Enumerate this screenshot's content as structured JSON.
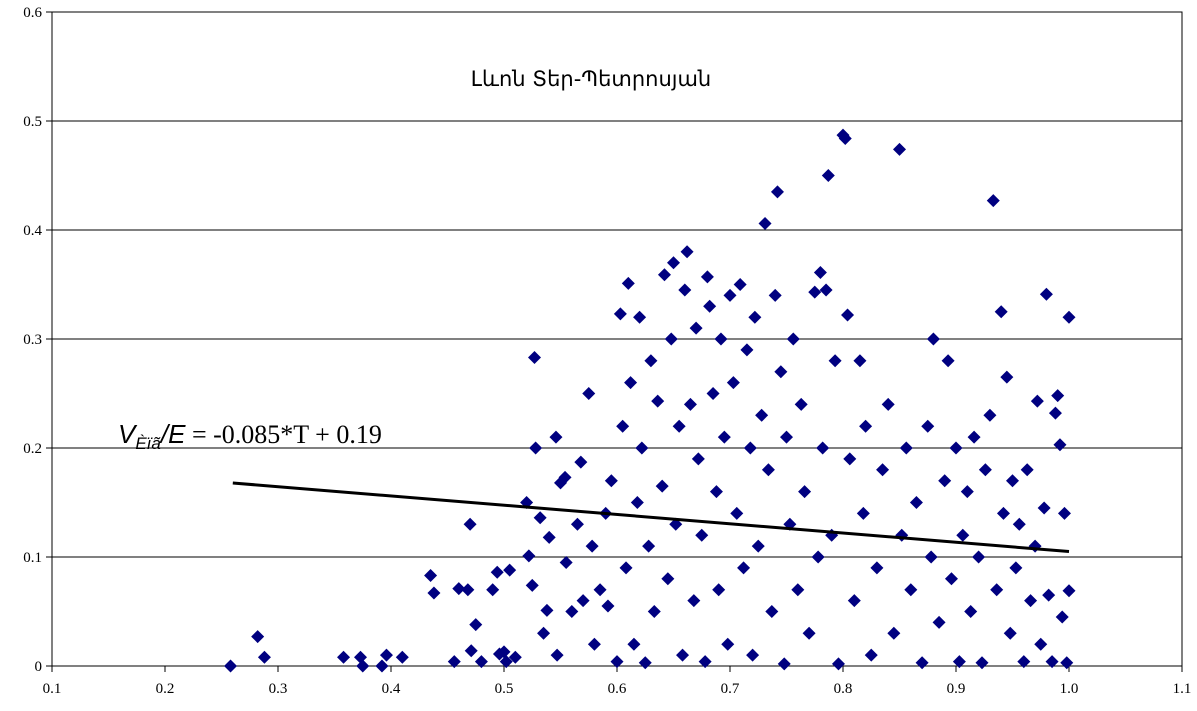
{
  "chart_data": {
    "type": "scatter",
    "title": "Լևոն Տեր-Պետրոսյան",
    "xlabel": "",
    "ylabel": "",
    "xlim": [
      0.1,
      1.1
    ],
    "ylim": [
      0,
      0.6
    ],
    "x_ticks": [
      "0.1",
      "0.2",
      "0.3",
      "0.4",
      "0.5",
      "0.6",
      "0.7",
      "0.8",
      "0.9",
      "1.0",
      "1.1"
    ],
    "y_ticks": [
      "0",
      "0.1",
      "0.2",
      "0.3",
      "0.4",
      "0.5",
      "0.6"
    ],
    "grid": "horizontal",
    "marker": "diamond",
    "marker_color": "#000080",
    "trendline": {
      "slope": -0.085,
      "intercept": 0.19,
      "x_range": [
        0.26,
        1.0
      ],
      "color": "#000000"
    },
    "equation": {
      "v": "V",
      "sub": "Èïã",
      "slash_e": "/E",
      "rest": " = -0.085*T + 0.19"
    },
    "series": [
      {
        "points": [
          [
            0.258,
            0.0
          ],
          [
            0.282,
            0.027
          ],
          [
            0.288,
            0.008
          ],
          [
            0.358,
            0.008
          ],
          [
            0.373,
            0.008
          ],
          [
            0.375,
            0.0
          ],
          [
            0.392,
            0.0
          ],
          [
            0.396,
            0.01
          ],
          [
            0.41,
            0.008
          ],
          [
            0.435,
            0.083
          ],
          [
            0.438,
            0.067
          ],
          [
            0.456,
            0.004
          ],
          [
            0.46,
            0.071
          ],
          [
            0.468,
            0.07
          ],
          [
            0.47,
            0.13
          ],
          [
            0.471,
            0.014
          ],
          [
            0.475,
            0.038
          ],
          [
            0.48,
            0.004
          ],
          [
            0.49,
            0.07
          ],
          [
            0.494,
            0.086
          ],
          [
            0.496,
            0.011
          ],
          [
            0.5,
            0.013
          ],
          [
            0.502,
            0.004
          ],
          [
            0.505,
            0.088
          ],
          [
            0.51,
            0.008
          ],
          [
            0.52,
            0.15
          ],
          [
            0.522,
            0.101
          ],
          [
            0.525,
            0.074
          ],
          [
            0.527,
            0.283
          ],
          [
            0.528,
            0.2
          ],
          [
            0.532,
            0.136
          ],
          [
            0.535,
            0.03
          ],
          [
            0.538,
            0.051
          ],
          [
            0.54,
            0.118
          ],
          [
            0.546,
            0.21
          ],
          [
            0.547,
            0.01
          ],
          [
            0.55,
            0.168
          ],
          [
            0.554,
            0.173
          ],
          [
            0.555,
            0.095
          ],
          [
            0.56,
            0.05
          ],
          [
            0.565,
            0.13
          ],
          [
            0.568,
            0.187
          ],
          [
            0.57,
            0.06
          ],
          [
            0.575,
            0.25
          ],
          [
            0.578,
            0.11
          ],
          [
            0.58,
            0.02
          ],
          [
            0.585,
            0.07
          ],
          [
            0.59,
            0.14
          ],
          [
            0.592,
            0.055
          ],
          [
            0.595,
            0.17
          ],
          [
            0.6,
            0.004
          ],
          [
            0.603,
            0.323
          ],
          [
            0.605,
            0.22
          ],
          [
            0.608,
            0.09
          ],
          [
            0.61,
            0.351
          ],
          [
            0.612,
            0.26
          ],
          [
            0.615,
            0.02
          ],
          [
            0.618,
            0.15
          ],
          [
            0.62,
            0.32
          ],
          [
            0.622,
            0.2
          ],
          [
            0.625,
            0.003
          ],
          [
            0.628,
            0.11
          ],
          [
            0.63,
            0.28
          ],
          [
            0.633,
            0.05
          ],
          [
            0.636,
            0.243
          ],
          [
            0.64,
            0.165
          ],
          [
            0.642,
            0.359
          ],
          [
            0.645,
            0.08
          ],
          [
            0.648,
            0.3
          ],
          [
            0.65,
            0.37
          ],
          [
            0.652,
            0.13
          ],
          [
            0.655,
            0.22
          ],
          [
            0.658,
            0.01
          ],
          [
            0.66,
            0.345
          ],
          [
            0.662,
            0.38
          ],
          [
            0.665,
            0.24
          ],
          [
            0.668,
            0.06
          ],
          [
            0.67,
            0.31
          ],
          [
            0.672,
            0.19
          ],
          [
            0.675,
            0.12
          ],
          [
            0.678,
            0.004
          ],
          [
            0.68,
            0.357
          ],
          [
            0.682,
            0.33
          ],
          [
            0.685,
            0.25
          ],
          [
            0.688,
            0.16
          ],
          [
            0.69,
            0.07
          ],
          [
            0.692,
            0.3
          ],
          [
            0.695,
            0.21
          ],
          [
            0.698,
            0.02
          ],
          [
            0.7,
            0.34
          ],
          [
            0.703,
            0.26
          ],
          [
            0.706,
            0.14
          ],
          [
            0.709,
            0.35
          ],
          [
            0.712,
            0.09
          ],
          [
            0.715,
            0.29
          ],
          [
            0.718,
            0.2
          ],
          [
            0.72,
            0.01
          ],
          [
            0.722,
            0.32
          ],
          [
            0.725,
            0.11
          ],
          [
            0.728,
            0.23
          ],
          [
            0.731,
            0.406
          ],
          [
            0.734,
            0.18
          ],
          [
            0.737,
            0.05
          ],
          [
            0.74,
            0.34
          ],
          [
            0.742,
            0.435
          ],
          [
            0.745,
            0.27
          ],
          [
            0.748,
            0.002
          ],
          [
            0.75,
            0.21
          ],
          [
            0.753,
            0.13
          ],
          [
            0.756,
            0.3
          ],
          [
            0.76,
            0.07
          ],
          [
            0.763,
            0.24
          ],
          [
            0.766,
            0.16
          ],
          [
            0.77,
            0.03
          ],
          [
            0.775,
            0.343
          ],
          [
            0.778,
            0.1
          ],
          [
            0.78,
            0.361
          ],
          [
            0.782,
            0.2
          ],
          [
            0.785,
            0.345
          ],
          [
            0.787,
            0.45
          ],
          [
            0.79,
            0.12
          ],
          [
            0.793,
            0.28
          ],
          [
            0.796,
            0.002
          ],
          [
            0.8,
            0.487
          ],
          [
            0.802,
            0.484
          ],
          [
            0.804,
            0.322
          ],
          [
            0.806,
            0.19
          ],
          [
            0.81,
            0.06
          ],
          [
            0.815,
            0.28
          ],
          [
            0.818,
            0.14
          ],
          [
            0.82,
            0.22
          ],
          [
            0.825,
            0.01
          ],
          [
            0.83,
            0.09
          ],
          [
            0.835,
            0.18
          ],
          [
            0.84,
            0.24
          ],
          [
            0.845,
            0.03
          ],
          [
            0.85,
            0.474
          ],
          [
            0.852,
            0.12
          ],
          [
            0.856,
            0.2
          ],
          [
            0.86,
            0.07
          ],
          [
            0.865,
            0.15
          ],
          [
            0.87,
            0.003
          ],
          [
            0.875,
            0.22
          ],
          [
            0.878,
            0.1
          ],
          [
            0.88,
            0.3
          ],
          [
            0.885,
            0.04
          ],
          [
            0.89,
            0.17
          ],
          [
            0.893,
            0.28
          ],
          [
            0.896,
            0.08
          ],
          [
            0.9,
            0.2
          ],
          [
            0.903,
            0.004
          ],
          [
            0.906,
            0.12
          ],
          [
            0.91,
            0.16
          ],
          [
            0.913,
            0.05
          ],
          [
            0.916,
            0.21
          ],
          [
            0.92,
            0.1
          ],
          [
            0.923,
            0.003
          ],
          [
            0.926,
            0.18
          ],
          [
            0.93,
            0.23
          ],
          [
            0.933,
            0.427
          ],
          [
            0.936,
            0.07
          ],
          [
            0.94,
            0.325
          ],
          [
            0.942,
            0.14
          ],
          [
            0.945,
            0.265
          ],
          [
            0.948,
            0.03
          ],
          [
            0.95,
            0.17
          ],
          [
            0.953,
            0.09
          ],
          [
            0.956,
            0.13
          ],
          [
            0.96,
            0.004
          ],
          [
            0.963,
            0.18
          ],
          [
            0.966,
            0.06
          ],
          [
            0.97,
            0.11
          ],
          [
            0.972,
            0.243
          ],
          [
            0.975,
            0.02
          ],
          [
            0.978,
            0.145
          ],
          [
            0.98,
            0.341
          ],
          [
            0.982,
            0.065
          ],
          [
            0.985,
            0.004
          ],
          [
            0.988,
            0.232
          ],
          [
            0.99,
            0.248
          ],
          [
            0.992,
            0.203
          ],
          [
            0.994,
            0.045
          ],
          [
            0.996,
            0.14
          ],
          [
            0.998,
            0.003
          ],
          [
            1.0,
            0.069
          ],
          [
            1.0,
            0.32
          ]
        ]
      }
    ]
  }
}
